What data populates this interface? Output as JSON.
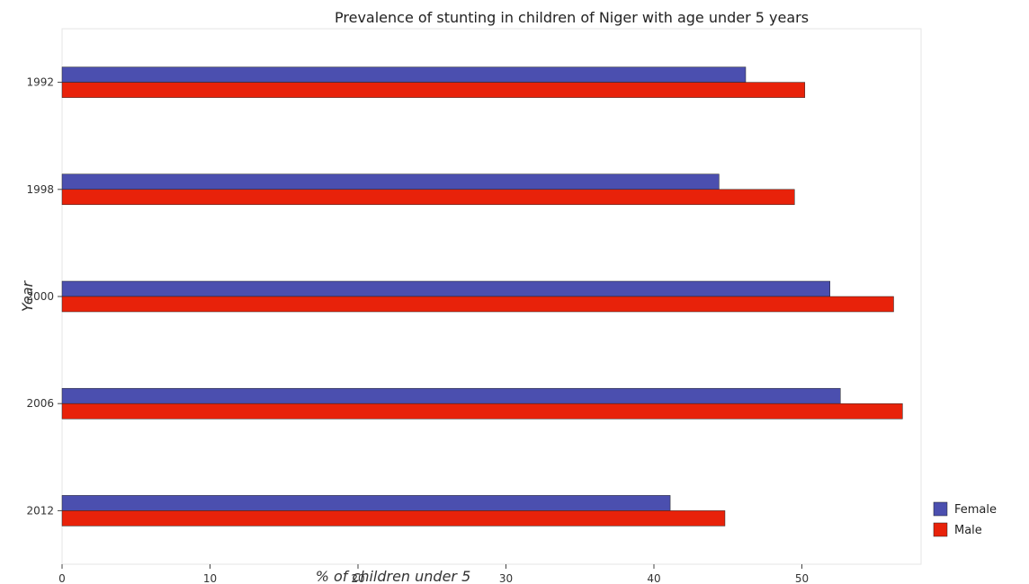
{
  "chart_data": {
    "type": "bar",
    "orientation": "horizontal",
    "title": "Prevalence of stunting in children of Niger with age under 5 years",
    "xlabel": "% of children under 5",
    "ylabel": "Year",
    "categories": [
      "1992",
      "1998",
      "2000",
      "2006",
      "2012"
    ],
    "series": [
      {
        "name": "Female",
        "color": "#4b4faf",
        "values": [
          46.2,
          44.4,
          51.9,
          52.6,
          41.1
        ]
      },
      {
        "name": "Male",
        "color": "#e8220a",
        "values": [
          50.2,
          49.5,
          56.2,
          56.8,
          44.8
        ]
      }
    ],
    "xlim": [
      0,
      60
    ],
    "xticks": [
      0,
      10,
      20,
      30,
      40,
      50
    ],
    "grid": false,
    "legend_position": "bottom-right"
  }
}
